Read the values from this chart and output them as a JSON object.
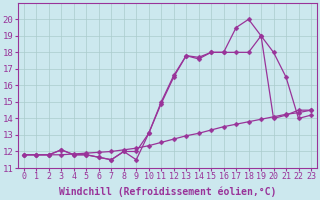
{
  "background_color": "#cce8ee",
  "grid_color": "#aacccc",
  "line_color": "#993399",
  "marker": "D",
  "marker_size": 2.5,
  "line_width": 0.9,
  "xlabel": "Windchill (Refroidissement éolien,°C)",
  "xlabel_fontsize": 7.0,
  "ytick_fontsize": 6.5,
  "xtick_fontsize": 6.0,
  "ylim": [
    11,
    21
  ],
  "xlim": [
    -0.5,
    23.5
  ],
  "yticks": [
    11,
    12,
    13,
    14,
    15,
    16,
    17,
    18,
    19,
    20
  ],
  "xticks": [
    0,
    1,
    2,
    3,
    4,
    5,
    6,
    7,
    8,
    9,
    10,
    11,
    12,
    13,
    14,
    15,
    16,
    17,
    18,
    19,
    20,
    21,
    22,
    23
  ],
  "line_bottom": [
    11.8,
    11.8,
    11.8,
    11.8,
    11.85,
    11.9,
    11.95,
    12.0,
    12.1,
    12.2,
    12.35,
    12.55,
    12.75,
    12.95,
    13.1,
    13.3,
    13.5,
    13.65,
    13.8,
    13.95,
    14.1,
    14.25,
    14.35,
    14.5
  ],
  "line_mid": [
    11.8,
    11.8,
    11.8,
    12.1,
    11.8,
    11.8,
    11.65,
    11.5,
    12.0,
    11.5,
    13.1,
    14.9,
    16.5,
    17.8,
    17.6,
    18.0,
    18.0,
    18.0,
    18.0,
    19.0,
    14.0,
    14.2,
    14.5,
    14.5
  ],
  "line_top": [
    11.8,
    11.8,
    11.8,
    12.1,
    11.8,
    11.8,
    11.65,
    11.5,
    12.0,
    12.0,
    13.1,
    15.0,
    16.6,
    17.8,
    17.7,
    18.0,
    18.0,
    19.5,
    20.0,
    19.0,
    18.0,
    16.5,
    14.0,
    14.2
  ],
  "x": [
    0,
    1,
    2,
    3,
    4,
    5,
    6,
    7,
    8,
    9,
    10,
    11,
    12,
    13,
    14,
    15,
    16,
    17,
    18,
    19,
    20,
    21,
    22,
    23
  ]
}
